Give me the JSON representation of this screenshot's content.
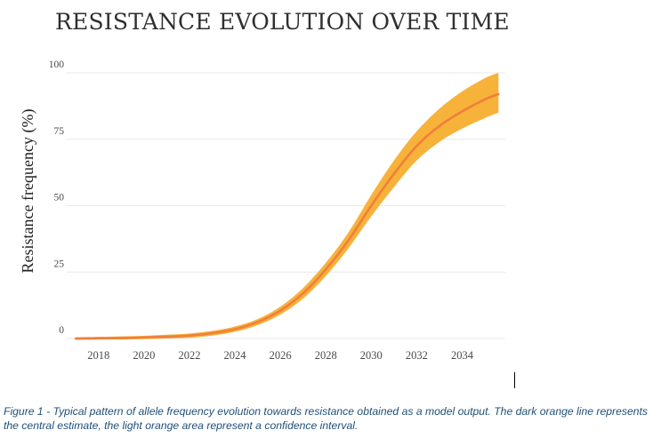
{
  "chart_data": {
    "type": "line",
    "title": "RESISTANCE EVOLUTION OVER TIME",
    "ylabel": "Resistance frequency (%)",
    "xlabel": "",
    "xlim": [
      2016.6,
      2035.9
    ],
    "ylim": [
      0,
      100
    ],
    "x_ticks": [
      2018,
      2020,
      2022,
      2024,
      2026,
      2028,
      2030,
      2032,
      2034
    ],
    "y_ticks": [
      0,
      25,
      50,
      75,
      100
    ],
    "grid": "horizontal",
    "legend": "none",
    "colors": {
      "central_line": "#f07f3c",
      "confidence_band": "#f7b23a",
      "grid": "#e8e8e8"
    },
    "series": [
      {
        "role": "central estimate",
        "x": [
          2017.0,
          2018.0,
          2019.0,
          2020.0,
          2021.0,
          2022.0,
          2023.0,
          2024.0,
          2025.0,
          2026.0,
          2027.0,
          2028.0,
          2029.0,
          2030.0,
          2031.0,
          2032.0,
          2033.0,
          2034.0,
          2035.0,
          2035.6
        ],
        "y": [
          0.0,
          0.1,
          0.2,
          0.4,
          0.7,
          1.1,
          2.0,
          3.5,
          6.2,
          10.5,
          17.0,
          26.0,
          37.0,
          50.0,
          62.0,
          72.5,
          80.0,
          85.5,
          90.0,
          92.0
        ]
      },
      {
        "role": "confidence interval",
        "x": [
          2017.0,
          2018.0,
          2019.0,
          2020.0,
          2021.0,
          2022.0,
          2023.0,
          2024.0,
          2025.0,
          2026.0,
          2027.0,
          2028.0,
          2029.0,
          2030.0,
          2031.0,
          2032.0,
          2033.0,
          2034.0,
          2035.0,
          2035.6
        ],
        "y_upper": [
          0.5,
          0.6,
          0.8,
          1.0,
          1.4,
          1.9,
          2.9,
          4.5,
          7.3,
          12.0,
          19.0,
          28.5,
          40.0,
          54.0,
          67.0,
          78.0,
          86.5,
          93.0,
          98.0,
          100.0
        ],
        "y_lower": [
          -0.5,
          -0.4,
          -0.4,
          -0.2,
          0.0,
          0.3,
          1.1,
          2.5,
          5.0,
          9.0,
          15.0,
          23.5,
          34.0,
          46.0,
          57.0,
          67.0,
          74.0,
          79.0,
          83.0,
          85.0
        ]
      }
    ]
  },
  "caption": {
    "text": "Figure 1 - Typical pattern of allele frequency evolution towards resistance obtained as a model output. The dark orange line represents the central estimate, the light orange area represent a confidence interval."
  }
}
